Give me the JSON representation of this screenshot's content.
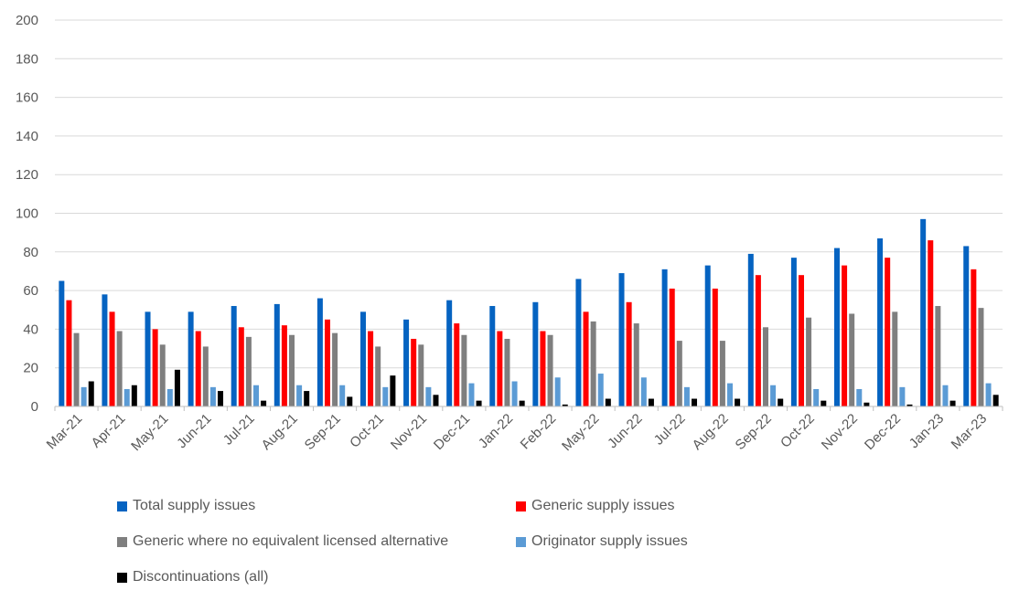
{
  "chart_data": {
    "type": "bar",
    "title": "",
    "xlabel": "",
    "ylabel": "",
    "ylim": [
      0,
      200
    ],
    "yticks": [
      0,
      20,
      40,
      60,
      80,
      100,
      120,
      140,
      160,
      180,
      200
    ],
    "grid": true,
    "legend_position": "bottom",
    "categories": [
      "Mar-21",
      "Apr-21",
      "May-21",
      "Jun-21",
      "Jul-21",
      "Aug-21",
      "Sep-21",
      "Oct-21",
      "Nov-21",
      "Dec-21",
      "Jan-22",
      "Feb-22",
      "May-22",
      "Jun-22",
      "Jul-22",
      "Aug-22",
      "Sep-22",
      "Oct-22",
      "Nov-22",
      "Dec-22",
      "Jan-23",
      "Mar-23"
    ],
    "series": [
      {
        "name": "Total supply issues",
        "color": "#0563C1",
        "values": [
          65,
          58,
          49,
          49,
          52,
          53,
          56,
          49,
          45,
          55,
          52,
          54,
          66,
          69,
          71,
          73,
          79,
          77,
          82,
          87,
          97,
          83
        ]
      },
      {
        "name": "Generic supply issues",
        "color": "#FF0000",
        "values": [
          55,
          49,
          40,
          39,
          41,
          42,
          45,
          39,
          35,
          43,
          39,
          39,
          49,
          54,
          61,
          61,
          68,
          68,
          73,
          77,
          86,
          71
        ]
      },
      {
        "name": "Generic where no equivalent licensed alternative",
        "color": "#7F7F7F",
        "values": [
          38,
          39,
          32,
          31,
          36,
          37,
          38,
          31,
          32,
          37,
          35,
          37,
          44,
          43,
          34,
          34,
          41,
          46,
          48,
          49,
          52,
          51
        ]
      },
      {
        "name": "Originator supply issues",
        "color": "#5B9BD5",
        "values": [
          10,
          9,
          9,
          10,
          11,
          11,
          11,
          10,
          10,
          12,
          13,
          15,
          17,
          15,
          10,
          12,
          11,
          9,
          9,
          10,
          11,
          12
        ]
      },
      {
        "name": "Discontinuations (all)",
        "color": "#000000",
        "values": [
          13,
          11,
          19,
          8,
          3,
          8,
          5,
          16,
          6,
          3,
          3,
          1,
          4,
          4,
          4,
          4,
          4,
          3,
          2,
          1,
          3,
          6
        ]
      }
    ]
  }
}
